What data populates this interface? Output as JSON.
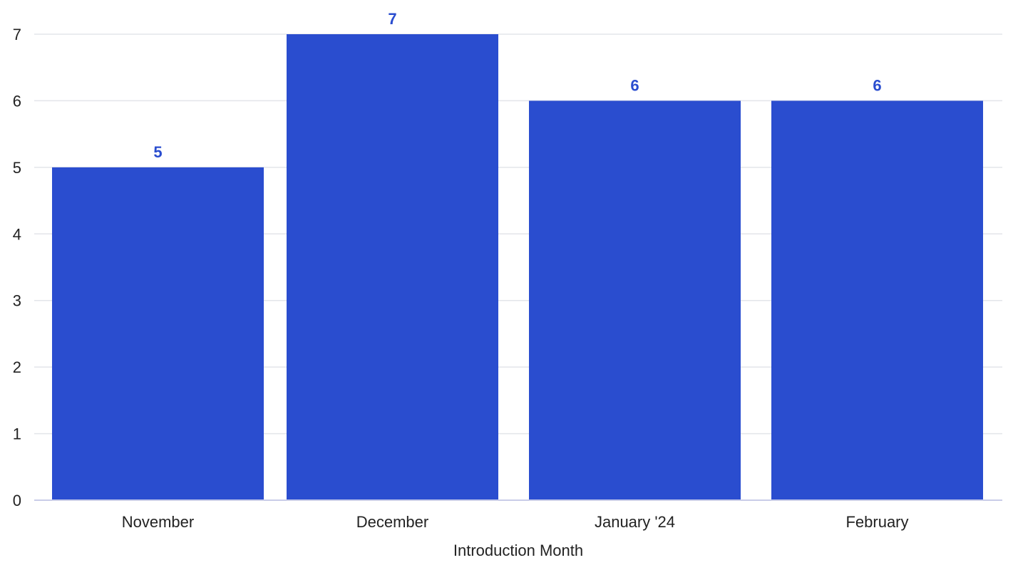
{
  "chart_data": {
    "type": "bar",
    "categories": [
      "November",
      "December",
      "January '24",
      "February"
    ],
    "values": [
      5,
      7,
      6,
      6
    ],
    "title": "",
    "xlabel": "Introduction Month",
    "ylabel": "",
    "ylim": [
      0,
      7
    ],
    "yticks": [
      0,
      1,
      2,
      3,
      4,
      5,
      6,
      7
    ],
    "grid": true,
    "legend": "none",
    "data_labels": true,
    "colors": {
      "bar": "#2a4dcf",
      "data_label": "#2a4dcf"
    }
  }
}
